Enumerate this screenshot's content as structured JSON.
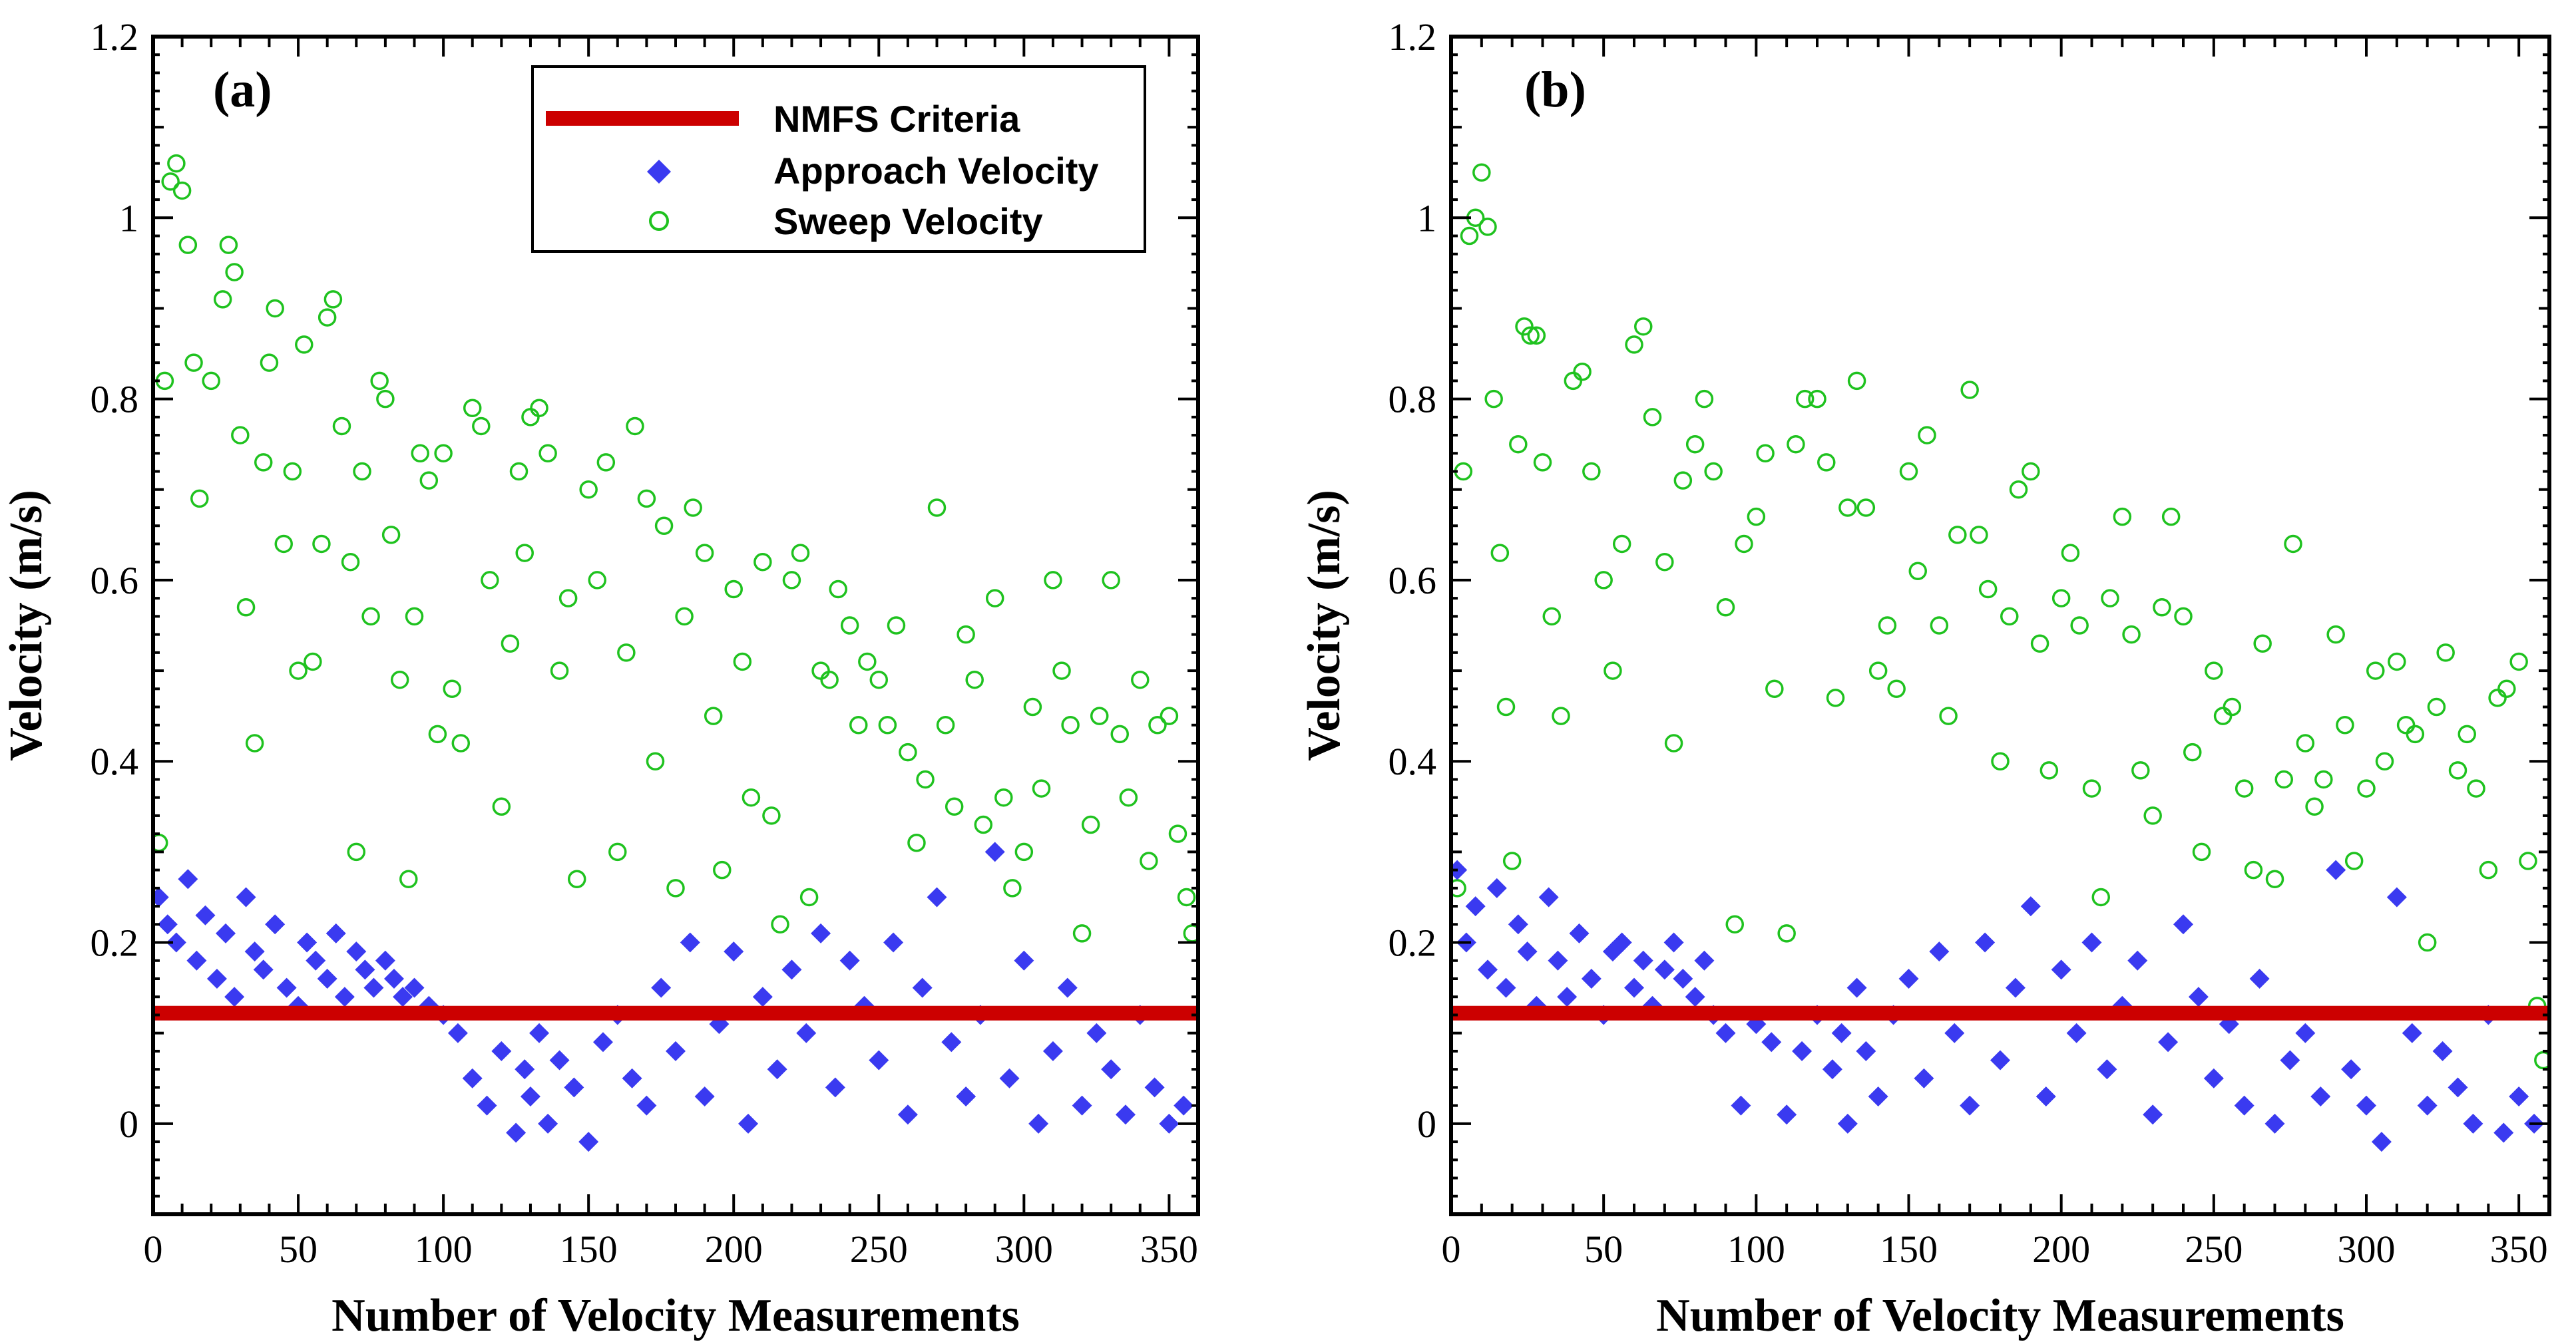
{
  "colors": {
    "criteria": "#cc0000",
    "approach": "#3a3af0",
    "sweep": "#1fc21f",
    "axis": "#000000"
  },
  "legend": {
    "criteria_label": "NMFS Criteria",
    "approach_label": "Approach Velocity",
    "sweep_label": "Sweep Velocity"
  },
  "chart_data": [
    {
      "type": "scatter",
      "panel_label": "(a)",
      "xlabel": "Number of Velocity Measurements",
      "ylabel": "Velocity (m/s)",
      "xlim": [
        0,
        360
      ],
      "ylim": [
        -0.1,
        1.2
      ],
      "xticks": [
        "0",
        "50",
        "100",
        "150",
        "200",
        "250",
        "300",
        "350"
      ],
      "yticks": [
        "0",
        "0.2",
        "0.4",
        "0.6",
        "0.8",
        "1",
        "1.2"
      ],
      "criteria": 0.122,
      "series": [
        {
          "name": "Approach Velocity",
          "marker": "diamond",
          "x": [
            2,
            5,
            8,
            12,
            15,
            18,
            22,
            25,
            28,
            32,
            35,
            38,
            42,
            46,
            50,
            53,
            56,
            60,
            63,
            66,
            70,
            73,
            76,
            80,
            83,
            86,
            90,
            95,
            100,
            105,
            110,
            115,
            120,
            125,
            128,
            130,
            133,
            136,
            140,
            145,
            150,
            155,
            160,
            165,
            170,
            175,
            180,
            185,
            190,
            195,
            200,
            205,
            210,
            215,
            220,
            225,
            230,
            235,
            240,
            245,
            250,
            255,
            260,
            265,
            270,
            275,
            280,
            285,
            290,
            295,
            300,
            305,
            310,
            315,
            320,
            325,
            330,
            335,
            340,
            345,
            350,
            355
          ],
          "y": [
            0.25,
            0.22,
            0.2,
            0.27,
            0.18,
            0.23,
            0.16,
            0.21,
            0.14,
            0.25,
            0.19,
            0.17,
            0.22,
            0.15,
            0.13,
            0.2,
            0.18,
            0.16,
            0.21,
            0.14,
            0.19,
            0.17,
            0.15,
            0.18,
            0.16,
            0.14,
            0.15,
            0.13,
            0.12,
            0.1,
            0.05,
            0.02,
            0.08,
            -0.01,
            0.06,
            0.03,
            0.1,
            0.0,
            0.07,
            0.04,
            -0.02,
            0.09,
            0.12,
            0.05,
            0.02,
            0.15,
            0.08,
            0.2,
            0.03,
            0.11,
            0.19,
            0.0,
            0.14,
            0.06,
            0.17,
            0.1,
            0.21,
            0.04,
            0.18,
            0.13,
            0.07,
            0.2,
            0.01,
            0.15,
            0.25,
            0.09,
            0.03,
            0.12,
            0.3,
            0.05,
            0.18,
            0.0,
            0.08,
            0.15,
            0.02,
            0.1,
            0.06,
            0.01,
            0.12,
            0.04,
            0.0,
            0.02
          ]
        },
        {
          "name": "Sweep Velocity",
          "marker": "circle",
          "x": [
            2,
            4,
            6,
            8,
            10,
            12,
            14,
            16,
            20,
            24,
            26,
            28,
            30,
            32,
            35,
            38,
            40,
            42,
            45,
            48,
            50,
            52,
            55,
            58,
            60,
            62,
            65,
            68,
            70,
            72,
            75,
            78,
            80,
            82,
            85,
            88,
            90,
            92,
            95,
            98,
            100,
            103,
            106,
            110,
            113,
            116,
            120,
            123,
            126,
            128,
            130,
            133,
            136,
            140,
            143,
            146,
            150,
            153,
            156,
            160,
            163,
            166,
            170,
            173,
            176,
            180,
            183,
            186,
            190,
            193,
            196,
            200,
            203,
            206,
            210,
            213,
            216,
            220,
            223,
            226,
            230,
            233,
            236,
            240,
            243,
            246,
            250,
            253,
            256,
            260,
            263,
            266,
            270,
            273,
            276,
            280,
            283,
            286,
            290,
            293,
            296,
            300,
            303,
            306,
            310,
            313,
            316,
            320,
            323,
            326,
            330,
            333,
            336,
            340,
            343,
            346,
            350,
            353,
            356,
            358
          ],
          "y": [
            0.31,
            0.82,
            1.04,
            1.06,
            1.03,
            0.97,
            0.84,
            0.69,
            0.82,
            0.91,
            0.97,
            0.94,
            0.76,
            0.57,
            0.42,
            0.73,
            0.84,
            0.9,
            0.64,
            0.72,
            0.5,
            0.86,
            0.51,
            0.64,
            0.89,
            0.91,
            0.77,
            0.62,
            0.3,
            0.72,
            0.56,
            0.82,
            0.8,
            0.65,
            0.49,
            0.27,
            0.56,
            0.74,
            0.71,
            0.43,
            0.74,
            0.48,
            0.42,
            0.79,
            0.77,
            0.6,
            0.35,
            0.53,
            0.72,
            0.63,
            0.78,
            0.79,
            0.74,
            0.5,
            0.58,
            0.27,
            0.7,
            0.6,
            0.73,
            0.3,
            0.52,
            0.77,
            0.69,
            0.4,
            0.66,
            0.26,
            0.56,
            0.68,
            0.63,
            0.45,
            0.28,
            0.59,
            0.51,
            0.36,
            0.62,
            0.34,
            0.22,
            0.6,
            0.63,
            0.25,
            0.5,
            0.49,
            0.59,
            0.55,
            0.44,
            0.51,
            0.49,
            0.44,
            0.55,
            0.41,
            0.31,
            0.38,
            0.68,
            0.44,
            0.35,
            0.54,
            0.49,
            0.33,
            0.58,
            0.36,
            0.26,
            0.3,
            0.46,
            0.37,
            0.6,
            0.5,
            0.44,
            0.21,
            0.33,
            0.45,
            0.6,
            0.43,
            0.36,
            0.49,
            0.29,
            0.44,
            0.45,
            0.32,
            0.25,
            0.21
          ]
        }
      ]
    },
    {
      "type": "scatter",
      "panel_label": "(b)",
      "xlabel": "Number of Velocity Measurements",
      "ylabel": "Velocity (m/s)",
      "xlim": [
        0,
        360
      ],
      "ylim": [
        -0.1,
        1.2
      ],
      "xticks": [
        "0",
        "50",
        "100",
        "150",
        "200",
        "250",
        "300",
        "350"
      ],
      "yticks": [
        "0",
        "0.2",
        "0.4",
        "0.6",
        "0.8",
        "1",
        "1.2"
      ],
      "criteria": 0.122,
      "series": [
        {
          "name": "Approach Velocity",
          "marker": "diamond",
          "x": [
            2,
            5,
            8,
            12,
            15,
            18,
            22,
            25,
            28,
            32,
            35,
            38,
            42,
            46,
            50,
            53,
            56,
            60,
            63,
            66,
            70,
            73,
            76,
            80,
            83,
            86,
            90,
            95,
            100,
            105,
            110,
            115,
            120,
            125,
            128,
            130,
            133,
            136,
            140,
            145,
            150,
            155,
            160,
            165,
            170,
            175,
            180,
            185,
            190,
            195,
            200,
            205,
            210,
            215,
            220,
            225,
            230,
            235,
            240,
            245,
            250,
            255,
            260,
            265,
            270,
            275,
            280,
            285,
            290,
            295,
            300,
            305,
            310,
            315,
            320,
            325,
            330,
            335,
            340,
            345,
            350,
            355
          ],
          "y": [
            0.28,
            0.2,
            0.24,
            0.17,
            0.26,
            0.15,
            0.22,
            0.19,
            0.13,
            0.25,
            0.18,
            0.14,
            0.21,
            0.16,
            0.12,
            0.19,
            0.2,
            0.15,
            0.18,
            0.13,
            0.17,
            0.2,
            0.16,
            0.14,
            0.18,
            0.12,
            0.1,
            0.02,
            0.11,
            0.09,
            0.01,
            0.08,
            0.12,
            0.06,
            0.1,
            0.0,
            0.15,
            0.08,
            0.03,
            0.12,
            0.16,
            0.05,
            0.19,
            0.1,
            0.02,
            0.2,
            0.07,
            0.15,
            0.24,
            0.03,
            0.17,
            0.1,
            0.2,
            0.06,
            0.13,
            0.18,
            0.01,
            0.09,
            0.22,
            0.14,
            0.05,
            0.11,
            0.02,
            0.16,
            0.0,
            0.07,
            0.1,
            0.03,
            0.28,
            0.06,
            0.02,
            -0.02,
            0.25,
            0.1,
            0.02,
            0.08,
            0.04,
            0.0,
            0.12,
            -0.01,
            0.03,
            0.0
          ]
        },
        {
          "name": "Sweep Velocity",
          "marker": "circle",
          "x": [
            2,
            4,
            6,
            8,
            10,
            12,
            14,
            16,
            18,
            20,
            22,
            24,
            26,
            28,
            30,
            33,
            36,
            40,
            43,
            46,
            50,
            53,
            56,
            60,
            63,
            66,
            70,
            73,
            76,
            80,
            83,
            86,
            90,
            93,
            96,
            100,
            103,
            106,
            110,
            113,
            116,
            120,
            123,
            126,
            130,
            133,
            136,
            140,
            143,
            146,
            150,
            153,
            156,
            160,
            163,
            166,
            170,
            173,
            176,
            180,
            183,
            186,
            190,
            193,
            196,
            200,
            203,
            206,
            210,
            213,
            216,
            220,
            223,
            226,
            230,
            233,
            236,
            240,
            243,
            246,
            250,
            253,
            256,
            260,
            263,
            266,
            270,
            273,
            276,
            280,
            283,
            286,
            290,
            293,
            296,
            300,
            303,
            306,
            310,
            313,
            316,
            320,
            323,
            326,
            330,
            333,
            336,
            340,
            343,
            346,
            350,
            353,
            356,
            358
          ],
          "y": [
            0.26,
            0.72,
            0.98,
            1.0,
            1.05,
            0.99,
            0.8,
            0.63,
            0.46,
            0.29,
            0.75,
            0.88,
            0.87,
            0.87,
            0.73,
            0.56,
            0.45,
            0.82,
            0.83,
            0.72,
            0.6,
            0.5,
            0.64,
            0.86,
            0.88,
            0.78,
            0.62,
            0.42,
            0.71,
            0.75,
            0.8,
            0.72,
            0.57,
            0.22,
            0.64,
            0.67,
            0.74,
            0.48,
            0.21,
            0.75,
            0.8,
            0.8,
            0.73,
            0.47,
            0.68,
            0.82,
            0.68,
            0.5,
            0.55,
            0.48,
            0.72,
            0.61,
            0.76,
            0.55,
            0.45,
            0.65,
            0.81,
            0.65,
            0.59,
            0.4,
            0.56,
            0.7,
            0.72,
            0.53,
            0.39,
            0.58,
            0.63,
            0.55,
            0.37,
            0.25,
            0.58,
            0.67,
            0.54,
            0.39,
            0.34,
            0.57,
            0.67,
            0.56,
            0.41,
            0.3,
            0.5,
            0.45,
            0.46,
            0.37,
            0.28,
            0.53,
            0.27,
            0.38,
            0.64,
            0.42,
            0.35,
            0.38,
            0.54,
            0.44,
            0.29,
            0.37,
            0.5,
            0.4,
            0.51,
            0.44,
            0.43,
            0.2,
            0.46,
            0.52,
            0.39,
            0.43,
            0.37,
            0.28,
            0.47,
            0.48,
            0.51,
            0.29,
            0.13,
            0.07
          ]
        }
      ]
    }
  ]
}
